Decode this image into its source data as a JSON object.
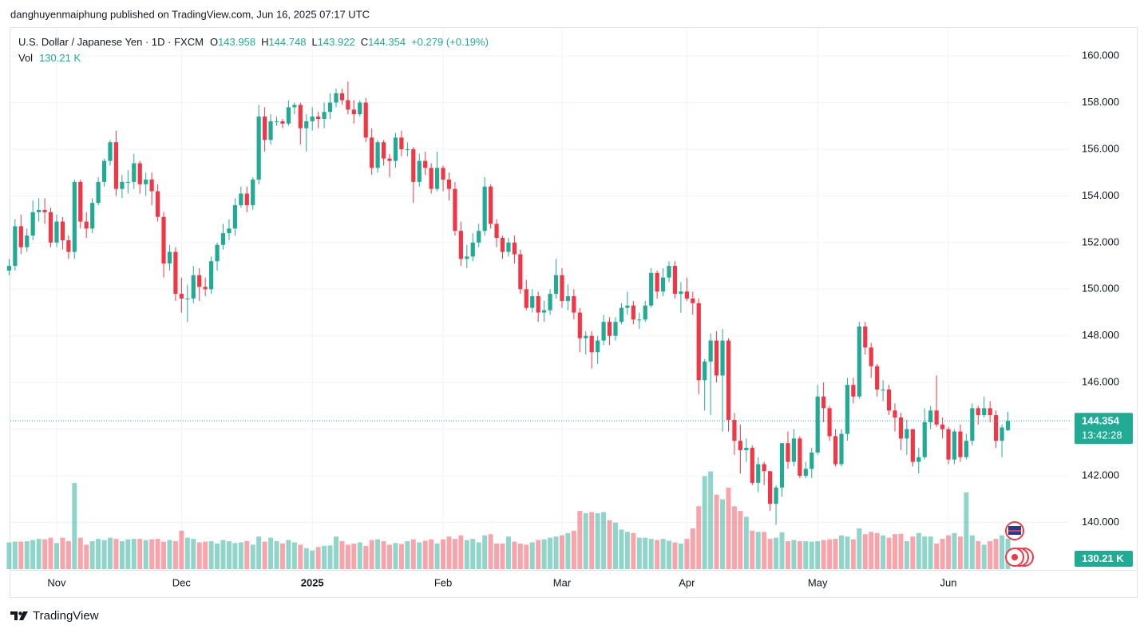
{
  "published": "danghuyenmaiphung published on TradingView.com, Jun 16, 2025 07:17 UTC",
  "brand": "TradingView",
  "chart_data": {
    "type": "candlestick",
    "symbol": "U.S. Dollar / Japanese Yen · 1D · FXCM",
    "ohlc_labels": [
      "O",
      "H",
      "L",
      "C"
    ],
    "change": "+0.279 (+0.19%)",
    "volume_label": "Vol",
    "volume_last_label": "130.21 K",
    "countdown": "13:42:28",
    "up_color": "#22ab94",
    "down_color": "#f23645",
    "volume_up_color": "rgba(34,171,148,0.5)",
    "volume_down_color": "rgba(242,54,69,0.45)",
    "grid": true,
    "ylim": [
      138,
      161.2
    ],
    "yticks": [
      {
        "value": 140,
        "label": "140.000"
      },
      {
        "value": 142,
        "label": "142.000"
      },
      {
        "value": 144,
        "label": "144.000"
      },
      {
        "value": 146,
        "label": "146.000"
      },
      {
        "value": 148,
        "label": "148.000"
      },
      {
        "value": 150,
        "label": "150.000"
      },
      {
        "value": 152,
        "label": "152.000"
      },
      {
        "value": 154,
        "label": "154.000"
      },
      {
        "value": 156,
        "label": "156.000"
      },
      {
        "value": 158,
        "label": "158.000"
      },
      {
        "value": 160,
        "label": "160.000"
      }
    ],
    "vlim": [
      0,
      600
    ],
    "categories": [
      null,
      null,
      null,
      null,
      null,
      null,
      null,
      null,
      "Nov",
      null,
      null,
      null,
      null,
      null,
      null,
      null,
      null,
      null,
      null,
      null,
      null,
      null,
      null,
      null,
      null,
      null,
      null,
      null,
      null,
      "Dec",
      null,
      null,
      null,
      null,
      null,
      null,
      null,
      null,
      null,
      null,
      null,
      null,
      null,
      null,
      null,
      null,
      null,
      null,
      null,
      null,
      null,
      "2025",
      null,
      null,
      null,
      null,
      null,
      null,
      null,
      null,
      null,
      null,
      null,
      null,
      null,
      null,
      null,
      null,
      null,
      null,
      null,
      null,
      null,
      "Feb",
      null,
      null,
      null,
      null,
      null,
      null,
      null,
      null,
      null,
      null,
      null,
      null,
      null,
      null,
      null,
      null,
      null,
      null,
      null,
      "Mar",
      null,
      null,
      null,
      null,
      null,
      null,
      null,
      null,
      null,
      null,
      null,
      null,
      null,
      null,
      null,
      null,
      null,
      null,
      null,
      null,
      "Apr",
      null,
      null,
      null,
      null,
      null,
      null,
      null,
      null,
      null,
      null,
      null,
      null,
      null,
      null,
      null,
      null,
      null,
      null,
      null,
      null,
      null,
      "May",
      null,
      null,
      null,
      null,
      null,
      null,
      null,
      null,
      null,
      null,
      null,
      null,
      null,
      null,
      null,
      null,
      null,
      null,
      null,
      null,
      null,
      "Jun",
      null,
      null,
      null,
      null,
      null,
      null,
      null,
      null,
      null,
      null
    ],
    "open": [
      150.8,
      151.0,
      152.7,
      151.8,
      152.3,
      153.3,
      153.4,
      153.3,
      152.0,
      152.9,
      152.1,
      151.6,
      154.6,
      152.9,
      152.6,
      153.7,
      154.6,
      155.5,
      156.3,
      154.3,
      154.6,
      154.6,
      155.4,
      154.5,
      154.7,
      154.2,
      153.1,
      151.1,
      151.6,
      149.8,
      149.6,
      149.6,
      150.6,
      150.1,
      150.0,
      151.2,
      151.9,
      152.4,
      152.6,
      153.6,
      154.1,
      153.6,
      154.7,
      157.4,
      156.4,
      157.2,
      157.2,
      157.1,
      157.8,
      157.9,
      156.9,
      157.2,
      157.4,
      157.3,
      157.6,
      158.0,
      158.4,
      158.1,
      157.7,
      157.5,
      158.0,
      156.5,
      155.2,
      156.3,
      155.6,
      155.5,
      156.5,
      156.0,
      156.0,
      154.6,
      155.5,
      155.2,
      154.3,
      155.2,
      154.7,
      154.3,
      152.5,
      151.3,
      151.4,
      152.0,
      152.5,
      154.4,
      152.8,
      152.2,
      151.6,
      152.0,
      151.5,
      150.0,
      149.2,
      149.7,
      149.0,
      149.1,
      149.8,
      150.6,
      149.5,
      149.7,
      149.0,
      147.9,
      148.0,
      147.3,
      147.8,
      148.6,
      148.0,
      148.6,
      149.2,
      149.3,
      148.7,
      148.7,
      149.3,
      150.7,
      149.9,
      150.5,
      151.0,
      149.8,
      149.9,
      149.6,
      149.4,
      146.1,
      146.9,
      147.8,
      146.3,
      147.8,
      144.4,
      143.5,
      143.1,
      143.2,
      141.7,
      142.5,
      142.2,
      140.8,
      141.5,
      143.4,
      142.6,
      143.6,
      142.0,
      142.3,
      143.0,
      145.4,
      144.9,
      143.7,
      142.5,
      143.8,
      145.9,
      145.4,
      148.4,
      147.5,
      146.7,
      145.7,
      145.7,
      144.8,
      144.5,
      143.6,
      144.0,
      142.6,
      142.8,
      144.3,
      144.8,
      144.2,
      144.0,
      142.7,
      143.9,
      142.8,
      143.5,
      144.9,
      144.6,
      144.9,
      144.6,
      143.5,
      143.958
    ],
    "high": [
      151.3,
      153.0,
      153.2,
      152.6,
      153.8,
      153.9,
      153.9,
      153.5,
      153.2,
      153.1,
      152.3,
      154.7,
      154.7,
      153.3,
      153.9,
      154.8,
      155.6,
      156.4,
      156.8,
      154.9,
      155.1,
      155.8,
      155.5,
      155.0,
      155.0,
      154.5,
      153.3,
      151.9,
      151.8,
      150.5,
      150.2,
      151.0,
      150.9,
      150.5,
      151.4,
      152.0,
      152.8,
      153.0,
      153.9,
      154.4,
      154.4,
      154.8,
      157.9,
      157.8,
      157.5,
      157.4,
      157.3,
      158.1,
      158.0,
      158.0,
      157.5,
      157.8,
      157.6,
      158.0,
      158.4,
      158.6,
      158.6,
      158.9,
      158.1,
      158.1,
      158.2,
      156.9,
      156.4,
      156.4,
      155.8,
      156.7,
      156.8,
      156.3,
      156.1,
      155.8,
      155.9,
      155.4,
      155.9,
      155.3,
      155.0,
      154.6,
      152.9,
      151.9,
      152.4,
      152.8,
      154.8,
      154.5,
      153.0,
      152.3,
      152.2,
      152.3,
      151.7,
      150.4,
      150.0,
      149.9,
      149.5,
      150.0,
      151.3,
      150.9,
      150.2,
      150.0,
      149.2,
      148.2,
      148.2,
      148.0,
      148.9,
      148.8,
      148.8,
      149.4,
      149.9,
      149.5,
      149.0,
      149.5,
      150.9,
      150.8,
      150.9,
      151.2,
      151.2,
      150.3,
      150.5,
      149.9,
      149.6,
      147.0,
      148.1,
      148.2,
      148.3,
      147.9,
      144.7,
      144.2,
      143.6,
      143.3,
      142.8,
      142.6,
      142.2,
      141.6,
      143.4,
      143.9,
      144.0,
      143.7,
      142.6,
      143.2,
      145.9,
      146.0,
      145.0,
      144.0,
      144.0,
      146.2,
      146.2,
      148.6,
      148.6,
      147.7,
      146.8,
      146.1,
      145.9,
      145.1,
      144.7,
      144.4,
      144.0,
      143.2,
      144.9,
      145.0,
      146.3,
      144.5,
      144.1,
      144.0,
      144.2,
      143.8,
      145.1,
      145.0,
      145.4,
      145.2,
      144.8,
      144.2,
      144.748
    ],
    "low": [
      150.6,
      150.8,
      151.5,
      151.6,
      152.1,
      152.9,
      152.8,
      151.8,
      151.8,
      151.7,
      151.3,
      151.3,
      152.6,
      152.2,
      152.4,
      153.6,
      154.4,
      155.3,
      154.0,
      153.9,
      154.1,
      154.3,
      154.1,
      154.0,
      153.6,
      152.9,
      150.5,
      150.8,
      149.5,
      149.0,
      148.6,
      149.4,
      149.5,
      149.7,
      149.8,
      150.8,
      151.7,
      152.1,
      152.3,
      153.5,
      153.3,
      153.4,
      154.5,
      155.9,
      156.2,
      157.0,
      156.9,
      157.0,
      157.5,
      156.2,
      155.9,
      156.8,
      156.9,
      156.9,
      157.3,
      157.8,
      157.9,
      157.5,
      157.1,
      157.4,
      156.3,
      154.9,
      155.0,
      155.3,
      154.8,
      155.2,
      155.7,
      155.7,
      153.7,
      154.4,
      154.9,
      154.1,
      154.2,
      154.2,
      153.8,
      152.3,
      151.0,
      150.9,
      151.2,
      151.8,
      152.3,
      152.6,
      151.8,
      151.3,
      151.4,
      151.1,
      149.8,
      149.1,
      149.0,
      148.6,
      148.6,
      148.9,
      149.6,
      149.2,
      149.1,
      148.7,
      147.3,
      147.2,
      146.6,
      146.8,
      147.6,
      147.6,
      147.8,
      148.5,
      148.9,
      148.5,
      148.3,
      148.6,
      149.2,
      149.6,
      149.7,
      150.3,
      149.6,
      149.0,
      149.5,
      148.9,
      145.5,
      144.8,
      144.6,
      146.0,
      143.9,
      143.9,
      142.9,
      142.1,
      142.6,
      141.6,
      141.3,
      141.6,
      140.5,
      139.9,
      141.1,
      142.3,
      142.4,
      141.9,
      141.9,
      141.9,
      142.9,
      144.3,
      143.5,
      142.4,
      142.4,
      143.5,
      145.1,
      145.3,
      147.2,
      146.2,
      145.4,
      145.2,
      144.6,
      143.9,
      143.1,
      142.9,
      142.4,
      142.1,
      142.7,
      144.0,
      144.1,
      143.6,
      142.5,
      142.5,
      142.6,
      142.7,
      143.3,
      144.2,
      144.5,
      144.3,
      143.2,
      142.8,
      143.922
    ],
    "close": [
      151.0,
      152.7,
      151.8,
      152.3,
      153.3,
      153.4,
      153.3,
      152.0,
      152.9,
      152.1,
      151.6,
      154.6,
      152.9,
      152.6,
      153.7,
      154.6,
      155.5,
      156.3,
      154.3,
      154.6,
      154.6,
      155.4,
      154.5,
      154.7,
      154.2,
      153.1,
      151.1,
      151.6,
      149.8,
      149.6,
      149.6,
      150.6,
      150.1,
      150.0,
      151.2,
      151.9,
      152.4,
      152.6,
      153.6,
      154.1,
      153.6,
      154.7,
      157.4,
      156.4,
      157.2,
      157.2,
      157.1,
      157.8,
      157.9,
      156.9,
      157.2,
      157.4,
      157.3,
      157.6,
      158.0,
      158.4,
      158.1,
      157.7,
      157.5,
      158.0,
      156.5,
      155.2,
      156.3,
      155.6,
      155.5,
      156.5,
      156.0,
      156.0,
      154.6,
      155.5,
      155.2,
      154.3,
      155.2,
      154.7,
      154.3,
      152.5,
      151.3,
      151.4,
      152.0,
      152.5,
      154.4,
      152.8,
      152.2,
      151.6,
      152.0,
      151.5,
      150.0,
      149.2,
      149.7,
      149.0,
      149.1,
      149.8,
      150.6,
      149.5,
      149.7,
      149.0,
      147.9,
      148.0,
      147.3,
      147.8,
      148.6,
      148.0,
      148.6,
      149.2,
      149.3,
      148.7,
      148.7,
      149.3,
      150.7,
      149.9,
      150.5,
      151.0,
      149.8,
      149.9,
      149.6,
      149.4,
      146.1,
      146.9,
      147.8,
      146.3,
      147.8,
      144.4,
      143.5,
      143.1,
      143.2,
      141.7,
      142.5,
      142.2,
      140.8,
      141.5,
      143.4,
      142.6,
      143.6,
      142.0,
      142.3,
      143.0,
      145.4,
      144.9,
      143.7,
      142.5,
      143.8,
      145.9,
      145.4,
      148.4,
      147.5,
      146.7,
      145.7,
      145.7,
      144.8,
      144.5,
      143.6,
      144.0,
      142.6,
      142.8,
      144.3,
      144.8,
      144.2,
      144.0,
      142.7,
      143.9,
      142.8,
      143.5,
      144.9,
      144.6,
      144.9,
      144.6,
      143.5,
      144.075,
      144.354
    ],
    "volume": [
      115,
      118,
      118,
      120,
      125,
      130,
      128,
      135,
      112,
      135,
      120,
      370,
      135,
      105,
      120,
      130,
      125,
      135,
      130,
      120,
      128,
      130,
      130,
      125,
      128,
      130,
      118,
      125,
      120,
      165,
      135,
      130,
      115,
      118,
      120,
      110,
      125,
      120,
      112,
      115,
      120,
      105,
      140,
      118,
      135,
      120,
      110,
      125,
      115,
      105,
      90,
      80,
      95,
      100,
      102,
      140,
      120,
      105,
      110,
      115,
      100,
      125,
      128,
      120,
      105,
      112,
      108,
      120,
      128,
      115,
      122,
      128,
      110,
      128,
      140,
      130,
      145,
      125,
      130,
      115,
      145,
      150,
      110,
      110,
      140,
      118,
      110,
      105,
      115,
      125,
      128,
      135,
      140,
      145,
      155,
      165,
      250,
      240,
      245,
      240,
      245,
      210,
      200,
      170,
      160,
      155,
      135,
      135,
      130,
      125,
      130,
      122,
      115,
      110,
      130,
      175,
      270,
      400,
      420,
      320,
      300,
      350,
      270,
      250,
      225,
      165,
      160,
      160,
      130,
      135,
      158,
      120,
      125,
      120,
      120,
      118,
      120,
      125,
      128,
      130,
      145,
      140,
      128,
      175,
      150,
      160,
      155,
      145,
      135,
      150,
      152,
      120,
      140,
      155,
      140,
      140,
      110,
      130,
      145,
      155,
      140,
      330,
      145,
      120,
      105,
      120,
      130,
      145,
      130.21
    ]
  }
}
